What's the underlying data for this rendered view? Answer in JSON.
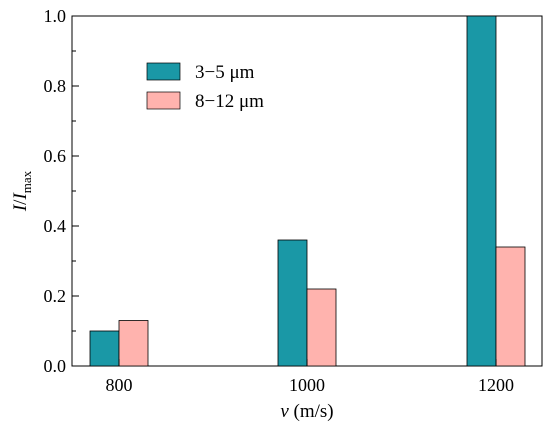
{
  "chart_data": {
    "type": "bar",
    "categories": [
      "800",
      "1000",
      "1200"
    ],
    "series": [
      {
        "name": "3−5 μm",
        "values": [
          0.1,
          0.36,
          1.0
        ],
        "color": "#1a98a6"
      },
      {
        "name": "8−12 μm",
        "values": [
          0.13,
          0.22,
          0.34
        ],
        "color": "#ffb3ae"
      }
    ],
    "y_ticks": [
      "0.0",
      "0.2",
      "0.4",
      "0.6",
      "0.8",
      "1.0"
    ],
    "ylim": [
      0,
      1.0
    ],
    "xlabel": {
      "var": "v",
      "unit": " (m/s)"
    },
    "ylabel": {
      "i": "I",
      "slash": "/",
      "imax": "I",
      "sub": "max"
    },
    "legend_position": "upper-left",
    "grid": false
  }
}
